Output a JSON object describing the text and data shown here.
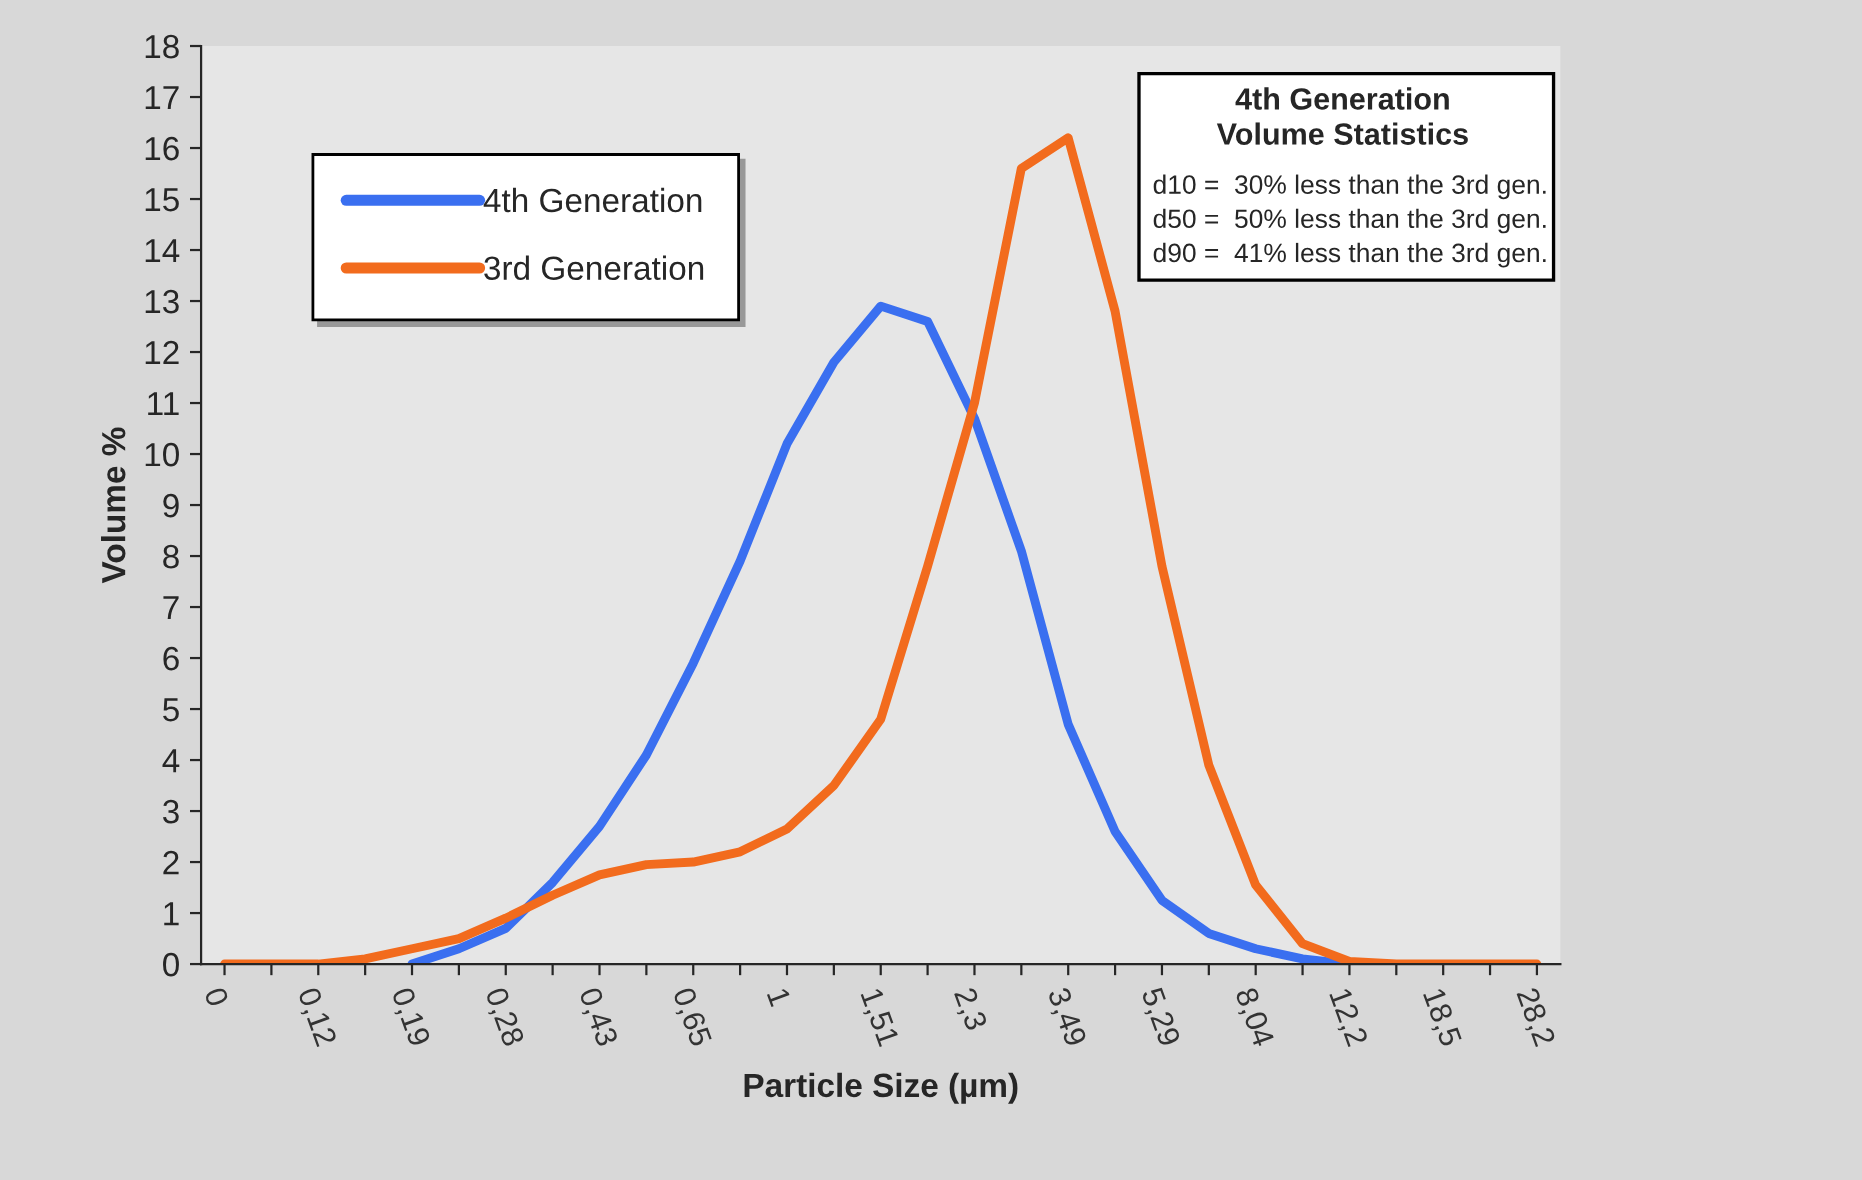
{
  "chart_data": {
    "type": "line",
    "xlabel": "Particle Size (µm)",
    "ylabel": "Volume %",
    "categories": [
      "0",
      null,
      "0,12",
      null,
      "0,19",
      null,
      "0,28",
      null,
      "0,43",
      null,
      "0,65",
      null,
      "1",
      null,
      "1,51",
      null,
      "2,3",
      null,
      "3,49",
      null,
      "5,29",
      null,
      "8,04",
      null,
      "12,2",
      null,
      "18,5",
      null,
      "28,2"
    ],
    "series": [
      {
        "name": "4th Generation",
        "color": "#3a6ff0",
        "values": [
          null,
          null,
          null,
          null,
          0,
          0.3,
          0.7,
          1.6,
          2.7,
          4.1,
          5.9,
          7.9,
          10.2,
          11.8,
          12.9,
          12.6,
          10.7,
          8.1,
          4.7,
          2.6,
          1.25,
          0.6,
          0.3,
          0.1,
          0,
          null,
          null,
          null,
          null
        ]
      },
      {
        "name": "3rd Generation",
        "color": "#f26b1d",
        "values": [
          0,
          0,
          0,
          0.1,
          0.3,
          0.5,
          0.9,
          1.35,
          1.75,
          1.95,
          2.0,
          2.2,
          2.65,
          3.5,
          4.8,
          7.8,
          11.0,
          15.6,
          16.2,
          12.8,
          7.8,
          3.9,
          1.55,
          0.4,
          0.05,
          0,
          0,
          0,
          0
        ]
      }
    ],
    "ylim": [
      0,
      18
    ],
    "yticks": [
      0,
      1,
      2,
      3,
      4,
      5,
      6,
      7,
      8,
      9,
      10,
      11,
      12,
      13,
      14,
      15,
      16,
      17,
      18
    ],
    "grid": false,
    "legend": "top left",
    "marker": "none",
    "line_style": "solid",
    "annotations": [
      "4th Generation\nVolume Statistics",
      "d10 =  30% less than the 3rd gen.",
      "d50 =  50% less than the 3rd gen.",
      "d90 =  41% less than the 3rd gen."
    ]
  }
}
